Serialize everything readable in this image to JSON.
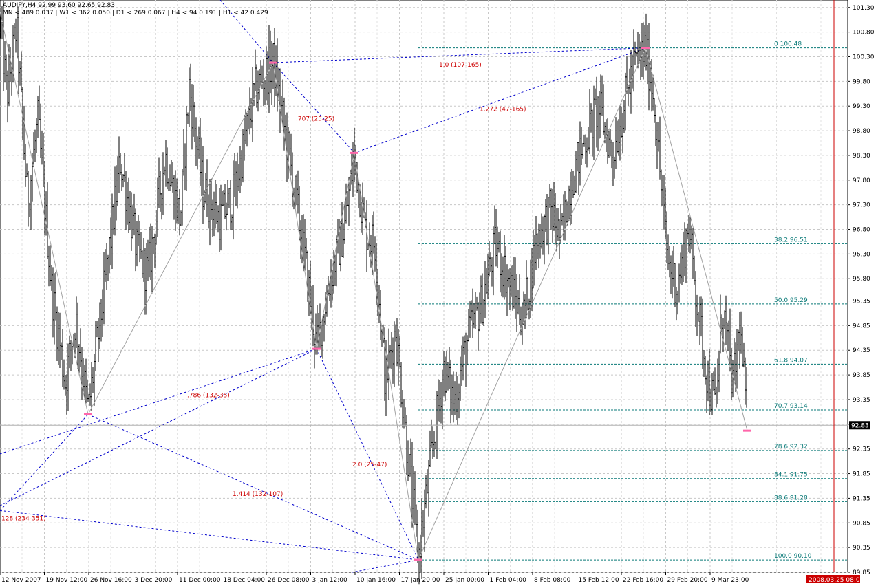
{
  "header": {
    "symbol_line": "AUDJPY,H4  92.99 93.60 92.65 92.83",
    "timeframe_line": "MN < 489   0.037  |  W1 < 362   0.050  |  D1 < 269   0.067  |  H4 < 94   0.191  |  H1 < 42   0.429"
  },
  "colors": {
    "background": "#ffffff",
    "grid": "#c8c8c8",
    "candles": "#000000",
    "zigzag": "#a0a0a0",
    "harmonic_lines": "#0000cc",
    "fib_lines": "#0a7a78",
    "ratio_labels": "#cc0000",
    "pivot_marks": "#ff66aa",
    "time_marker": "#cc0000",
    "price_label_bg": "#000000",
    "date_label_bg": "#cc0000"
  },
  "chart_data": {
    "type": "candlestick",
    "symbol": "AUDJPY",
    "timeframe": "H4",
    "ohlc_last": {
      "open": 92.99,
      "high": 93.6,
      "low": 92.65,
      "close": 92.83
    },
    "current_price_label": "92.83",
    "current_date_label": "2008.03.25 08:00",
    "ylim": [
      89.85,
      101.45
    ],
    "y_ticks": [
      "101.30",
      "100.80",
      "100.30",
      "99.80",
      "99.30",
      "98.80",
      "98.30",
      "97.80",
      "97.30",
      "96.80",
      "96.30",
      "95.80",
      "95.35",
      "94.85",
      "94.35",
      "93.85",
      "93.35",
      "92.85",
      "92.35",
      "91.85",
      "91.35",
      "90.85",
      "90.35",
      "89.85"
    ],
    "x_ticks": [
      "12 Nov 2007",
      "19 Nov 12:00",
      "26 Nov 16:00",
      "3 Dec 20:00",
      "11 Dec 00:00",
      "18 Dec 04:00",
      "26 Dec 08:00",
      "3 Jan 12:00",
      "10 Jan 16:00",
      "17 Jan 20:00",
      "25 Jan 00:00",
      "1 Feb 04:00",
      "8 Feb 08:00",
      "15 Feb 12:00",
      "22 Feb 16:00",
      "29 Feb 20:00",
      "9 Mar 23:00"
    ],
    "price_path": [
      {
        "t": 0,
        "p": 101.0
      },
      {
        "t": 10,
        "p": 99.5
      },
      {
        "t": 24,
        "p": 100.9
      },
      {
        "t": 40,
        "p": 97.3
      },
      {
        "t": 55,
        "p": 99.0
      },
      {
        "t": 75,
        "p": 95.6
      },
      {
        "t": 95,
        "p": 93.7
      },
      {
        "t": 110,
        "p": 95.0
      },
      {
        "t": 128,
        "p": 93.1
      },
      {
        "t": 150,
        "p": 95.4
      },
      {
        "t": 175,
        "p": 98.2
      },
      {
        "t": 200,
        "p": 96.3
      },
      {
        "t": 215,
        "p": 95.9
      },
      {
        "t": 240,
        "p": 98.3
      },
      {
        "t": 262,
        "p": 97.0
      },
      {
        "t": 275,
        "p": 99.7
      },
      {
        "t": 295,
        "p": 97.6
      },
      {
        "t": 320,
        "p": 97.0
      },
      {
        "t": 340,
        "p": 97.5
      },
      {
        "t": 370,
        "p": 99.6
      },
      {
        "t": 397,
        "p": 100.18
      },
      {
        "t": 420,
        "p": 98.3
      },
      {
        "t": 442,
        "p": 96.3
      },
      {
        "t": 460,
        "p": 94.4
      },
      {
        "t": 480,
        "p": 95.8
      },
      {
        "t": 500,
        "p": 96.8
      },
      {
        "t": 515,
        "p": 98.35
      },
      {
        "t": 530,
        "p": 96.8
      },
      {
        "t": 545,
        "p": 96.5
      },
      {
        "t": 560,
        "p": 93.7
      },
      {
        "t": 575,
        "p": 94.8
      },
      {
        "t": 590,
        "p": 92.6
      },
      {
        "t": 608,
        "p": 90.15
      },
      {
        "t": 625,
        "p": 92.0
      },
      {
        "t": 645,
        "p": 94.0
      },
      {
        "t": 660,
        "p": 93.3
      },
      {
        "t": 680,
        "p": 94.6
      },
      {
        "t": 700,
        "p": 95.3
      },
      {
        "t": 720,
        "p": 96.5
      },
      {
        "t": 740,
        "p": 95.7
      },
      {
        "t": 760,
        "p": 95.0
      },
      {
        "t": 780,
        "p": 96.6
      },
      {
        "t": 800,
        "p": 97.2
      },
      {
        "t": 815,
        "p": 96.6
      },
      {
        "t": 830,
        "p": 97.8
      },
      {
        "t": 850,
        "p": 98.6
      },
      {
        "t": 870,
        "p": 99.3
      },
      {
        "t": 890,
        "p": 98.3
      },
      {
        "t": 905,
        "p": 99.2
      },
      {
        "t": 920,
        "p": 100.1
      },
      {
        "t": 938,
        "p": 100.45
      },
      {
        "t": 950,
        "p": 99.5
      },
      {
        "t": 960,
        "p": 97.8
      },
      {
        "t": 970,
        "p": 96.2
      },
      {
        "t": 985,
        "p": 95.6
      },
      {
        "t": 1000,
        "p": 96.9
      },
      {
        "t": 1015,
        "p": 95.1
      },
      {
        "t": 1030,
        "p": 93.6
      },
      {
        "t": 1040,
        "p": 93.2
      },
      {
        "t": 1050,
        "p": 95.3
      },
      {
        "t": 1065,
        "p": 93.6
      },
      {
        "t": 1075,
        "p": 94.8
      },
      {
        "t": 1086,
        "p": 92.83
      }
    ],
    "zigzag": [
      {
        "t": 0,
        "p": 101.2
      },
      {
        "t": 128,
        "p": 93.05
      },
      {
        "t": 397,
        "p": 100.18
      },
      {
        "t": 460,
        "p": 94.38
      },
      {
        "t": 515,
        "p": 98.35
      },
      {
        "t": 608,
        "p": 90.1
      },
      {
        "t": 938,
        "p": 100.48
      },
      {
        "t": 1086,
        "p": 92.72
      }
    ],
    "pivots": [
      {
        "t": 128,
        "p": 93.05
      },
      {
        "t": 397,
        "p": 100.18
      },
      {
        "t": 460,
        "p": 94.38
      },
      {
        "t": 515,
        "p": 98.35
      },
      {
        "t": 608,
        "p": 90.1
      },
      {
        "t": 938,
        "p": 100.48
      },
      {
        "t": 1086,
        "p": 92.72
      }
    ],
    "harmonic_lines": [
      {
        "t1": 0,
        "p1": 92.25,
        "t2": 460,
        "p2": 94.38
      },
      {
        "t1": 0,
        "p1": 91.2,
        "t2": 460,
        "p2": 94.38
      },
      {
        "t1": 0,
        "p1": 91.1,
        "t2": 128,
        "p2": 93.05
      },
      {
        "t1": 0,
        "p1": 91.1,
        "t2": 608,
        "p2": 90.1
      },
      {
        "t1": 128,
        "p1": 93.05,
        "t2": 608,
        "p2": 90.1
      },
      {
        "t1": 460,
        "p1": 94.38,
        "t2": 608,
        "p2": 90.1
      },
      {
        "t1": 397,
        "p1": 100.18,
        "t2": 515,
        "p2": 98.35
      },
      {
        "t1": 320,
        "p1": 101.45,
        "t2": 397,
        "p2": 100.18
      },
      {
        "t1": 397,
        "p1": 100.18,
        "t2": 938,
        "p2": 100.48
      },
      {
        "t1": 515,
        "p1": 98.35,
        "t2": 938,
        "p2": 100.48
      },
      {
        "t1": 608,
        "p1": 90.1,
        "t2": 512,
        "p2": 89.85
      }
    ],
    "ratio_labels": [
      {
        "text": "1.0 (107-165)",
        "t": 638,
        "p": 100.1
      },
      {
        "text": "1.272 (47-165)",
        "t": 697,
        "p": 99.2
      },
      {
        "text": ".707 (25-25)",
        "t": 430,
        "p": 99.0
      },
      {
        "text": ".786 (132-35)",
        "t": 272,
        "p": 93.4
      },
      {
        "text": "2.0 (25-47)",
        "t": 512,
        "p": 92.0
      },
      {
        "text": "1.414 (132-107)",
        "t": 338,
        "p": 91.4
      },
      {
        "text": "128 (234-351)",
        "t": 2,
        "p": 90.9
      }
    ],
    "fib_levels": [
      {
        "label": "0   100.48",
        "price": 100.48,
        "t_start": 608
      },
      {
        "label": "38.2   96.51",
        "price": 96.51,
        "t_start": 608
      },
      {
        "label": "50.0   95.29",
        "price": 95.29,
        "t_start": 608
      },
      {
        "label": "61.8   94.07",
        "price": 94.07,
        "t_start": 608
      },
      {
        "label": "70.7   93.14",
        "price": 93.14,
        "t_start": 608
      },
      {
        "label": "78.6   92.32",
        "price": 92.32,
        "t_start": 608
      },
      {
        "label": "84.1   91.75",
        "price": 91.75,
        "t_start": 608
      },
      {
        "label": "88.6   91.28",
        "price": 91.28,
        "t_start": 608
      },
      {
        "label": "100.0   90.10",
        "price": 90.1,
        "t_start": 608
      }
    ],
    "grid": true
  }
}
